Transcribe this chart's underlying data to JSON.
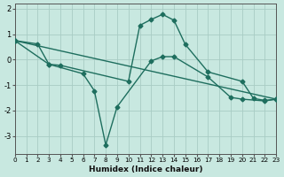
{
  "xlabel": "Humidex (Indice chaleur)",
  "xlim": [
    0,
    23
  ],
  "ylim": [
    -3.7,
    2.2
  ],
  "xtick_labels": [
    "0",
    "1",
    "2",
    "3",
    "4",
    "5",
    "6",
    "7",
    "8",
    "9",
    "10",
    "11",
    "12",
    "13",
    "14",
    "15",
    "16",
    "17",
    "18",
    "19",
    "20",
    "21",
    "22",
    "23"
  ],
  "xticks": [
    0,
    1,
    2,
    3,
    4,
    5,
    6,
    7,
    8,
    9,
    10,
    11,
    12,
    13,
    14,
    15,
    16,
    17,
    18,
    19,
    20,
    21,
    22,
    23
  ],
  "yticks": [
    -3,
    -2,
    -1,
    0,
    1,
    2
  ],
  "background_color": "#c8e8e0",
  "grid_color": "#a8ccc4",
  "line_color": "#1e6e5e",
  "line1_x": [
    0,
    2,
    3,
    4,
    10,
    11,
    12,
    13,
    14,
    15,
    17,
    20,
    21,
    22,
    23
  ],
  "line1_y": [
    0.75,
    0.62,
    -0.18,
    -0.22,
    -0.85,
    1.35,
    1.58,
    1.78,
    1.55,
    0.6,
    -0.48,
    -0.85,
    -1.52,
    -1.6,
    -1.55
  ],
  "line2_x": [
    0,
    3,
    6,
    7,
    8,
    9,
    12,
    13,
    14,
    17,
    19,
    20,
    22,
    23
  ],
  "line2_y": [
    0.75,
    -0.18,
    -0.55,
    -1.22,
    -3.35,
    -1.85,
    -0.05,
    0.12,
    0.12,
    -0.68,
    -1.48,
    -1.55,
    -1.62,
    -1.55
  ],
  "line3_x": [
    0,
    23
  ],
  "line3_y": [
    0.75,
    -1.55
  ],
  "marker": "D",
  "marker_size": 2.5,
  "linewidth": 1.0
}
